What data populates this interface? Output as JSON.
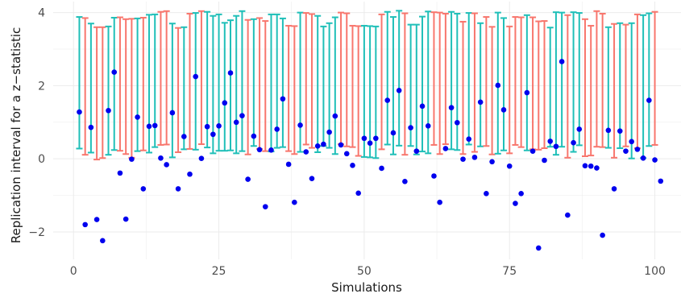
{
  "chart_data": {
    "type": "scatter",
    "title": "",
    "xlabel": "Simulations",
    "ylabel": "Replication interval for a z−statistic",
    "xlim": [
      -3.5,
      104.5
    ],
    "ylim": [
      -2.75,
      4.3
    ],
    "x_ticks": [
      0,
      25,
      50,
      75,
      100
    ],
    "x_tick_labels": [
      "0",
      "25",
      "50",
      "75",
      "100"
    ],
    "y_ticks": [
      -2,
      0,
      2,
      4
    ],
    "y_tick_labels": [
      "−2",
      "0",
      "2",
      "4"
    ],
    "grid": true,
    "legend": "none",
    "colors": {
      "point": "#0000ee",
      "interval_cover": "#1fbfb8",
      "interval_miss": "#f8766d",
      "grid": "#ebebeb",
      "axis_text": "#4d4d4d"
    },
    "series": [
      {
        "values": [
          1.28,
          -1.8,
          0.86,
          -1.66,
          -2.24,
          1.32,
          2.37,
          -0.39,
          -1.65,
          -0.01,
          1.14,
          -0.82,
          0.89,
          0.91,
          0.02,
          -0.16,
          1.26,
          -0.82,
          0.61,
          -0.42,
          2.25,
          0.01,
          0.88,
          0.67,
          0.9,
          1.53,
          2.35,
          1.0,
          1.18,
          -0.56,
          0.62,
          0.25,
          -1.31,
          0.24,
          0.81,
          1.64,
          -0.15,
          -1.19,
          0.92,
          0.19,
          -0.54,
          0.35,
          0.4,
          0.73,
          1.17,
          0.38,
          0.14,
          -0.18,
          -0.94,
          0.56,
          0.43,
          0.56,
          -0.26,
          1.6,
          0.71,
          1.87,
          -0.62,
          0.85,
          0.21,
          1.44,
          0.9,
          -0.47,
          -1.19,
          0.28,
          1.4,
          0.99,
          -0.01,
          0.54,
          0.04,
          1.55,
          -0.95,
          -0.08,
          2.01,
          1.34,
          -0.2,
          -1.22,
          -0.95,
          1.81,
          0.21,
          -2.44,
          -0.04,
          0.48,
          0.34,
          2.66,
          -1.54,
          0.44,
          0.81,
          -0.19,
          -0.2,
          -0.25,
          -2.09,
          0.78,
          -0.82,
          0.76,
          0.21,
          0.47,
          0.26,
          0.02,
          1.6,
          -0.03,
          -0.61
        ]
      },
      {
        "lower": [
          0.28,
          0.11,
          0.17,
          -0.02,
          0.02,
          0.11,
          0.24,
          0.22,
          0.13,
          0.03,
          0.21,
          0.23,
          0.17,
          0.32,
          0.38,
          0.39,
          0.04,
          0.18,
          0.26,
          0.27,
          0.25,
          0.4,
          0.31,
          0.15,
          0.22,
          0.22,
          0.23,
          0.15,
          0.21,
          0.12,
          0.35,
          0.27,
          0.21,
          0.2,
          0.3,
          0.32,
          0.21,
          0.13,
          0.19,
          0.39,
          0.3,
          0.18,
          0.35,
          0.3,
          0.13,
          0.4,
          0.34,
          0.32,
          0.08,
          0.05,
          0.04,
          0.02,
          0.26,
          0.39,
          0.12,
          0.36,
          0.11,
          0.35,
          0.12,
          0.2,
          0.15,
          0.38,
          0.13,
          0.4,
          0.26,
          0.24,
          0.13,
          0.39,
          0.19,
          0.34,
          0.35,
          0.12,
          0.14,
          0.23,
          0.15,
          0.38,
          0.32,
          0.23,
          0.26,
          0.25,
          0.29,
          0.33,
          0.11,
          0.33,
          0.03,
          0.19,
          0.37,
          0.07,
          0.09,
          0.33,
          0.32,
          0.3,
          0.03,
          0.29,
          0.34,
          0.01,
          0.29,
          0.02,
          0.35,
          0.38
        ],
        "upper": [
          3.88,
          3.85,
          3.7,
          3.6,
          3.6,
          3.62,
          3.86,
          3.87,
          3.82,
          3.83,
          3.84,
          3.86,
          3.94,
          3.95,
          4.02,
          4.04,
          3.7,
          3.58,
          3.6,
          3.97,
          3.99,
          4.04,
          4.02,
          3.91,
          3.95,
          3.72,
          3.79,
          3.91,
          4.04,
          3.8,
          3.82,
          3.85,
          3.77,
          3.95,
          3.95,
          3.84,
          3.64,
          3.63,
          4.0,
          3.99,
          3.96,
          3.91,
          3.62,
          3.71,
          3.87,
          4.0,
          3.98,
          3.64,
          3.63,
          3.64,
          3.63,
          3.62,
          3.95,
          4.02,
          3.88,
          4.05,
          3.98,
          3.67,
          3.67,
          3.89,
          4.03,
          4.01,
          4.0,
          3.97,
          4.02,
          3.97,
          3.75,
          3.99,
          3.98,
          3.71,
          3.88,
          3.61,
          4.0,
          3.85,
          3.62,
          3.88,
          3.87,
          3.93,
          3.87,
          3.76,
          3.77,
          3.59,
          4.01,
          4.0,
          3.93,
          4.01,
          3.99,
          3.82,
          3.64,
          4.04,
          3.97,
          3.6,
          3.69,
          3.71,
          3.67,
          3.71,
          3.95,
          3.93,
          3.98,
          4.02
        ],
        "covers": [
          true,
          false,
          true,
          false,
          false,
          true,
          true,
          false,
          false,
          false,
          true,
          false,
          true,
          true,
          false,
          false,
          true,
          false,
          true,
          false,
          true,
          false,
          true,
          true,
          true,
          true,
          true,
          true,
          true,
          false,
          true,
          false,
          false,
          true,
          true,
          true,
          false,
          false,
          true,
          false,
          false,
          true,
          true,
          true,
          true,
          false,
          false,
          false,
          false,
          true,
          true,
          true,
          false,
          true,
          true,
          true,
          false,
          true,
          true,
          true,
          true,
          false,
          false,
          false,
          true,
          true,
          false,
          true,
          false,
          true,
          false,
          false,
          true,
          true,
          false,
          false,
          false,
          true,
          false,
          false,
          false,
          true,
          true,
          true,
          false,
          true,
          true,
          false,
          false,
          false,
          false,
          true,
          false,
          true,
          false,
          true,
          false,
          true,
          true,
          false
        ]
      }
    ]
  }
}
